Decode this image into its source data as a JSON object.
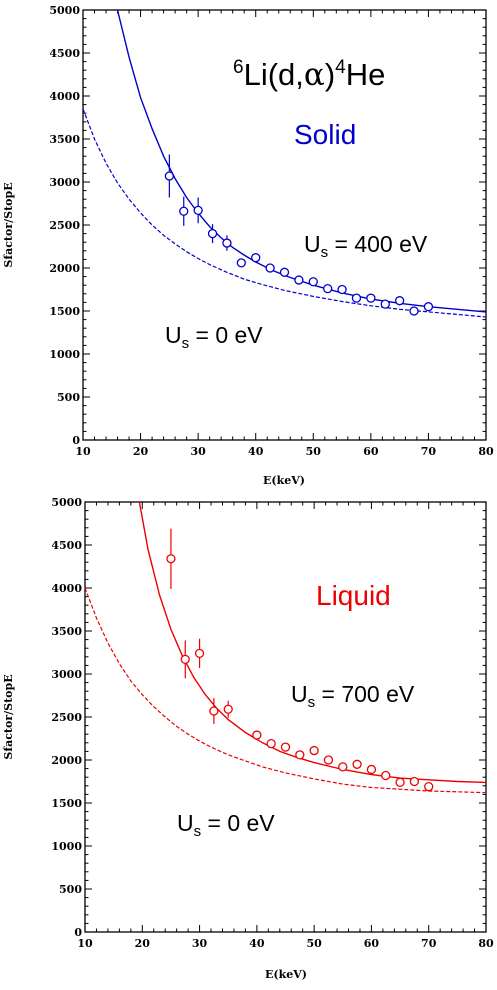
{
  "chart_data": [
    {
      "type": "scatter",
      "panel": "top",
      "xlabel": "E(keV)",
      "ylabel": "Sfactor/StopE",
      "xlim": [
        10,
        80
      ],
      "ylim": [
        0,
        5000
      ],
      "xticks": [
        10,
        20,
        30,
        40,
        50,
        60,
        70,
        80
      ],
      "yticks": [
        0,
        500,
        1000,
        1500,
        2000,
        2500,
        3000,
        3500,
        4000,
        4500,
        5000
      ],
      "color": "#0000cc",
      "title": "6Li(d,α)4He",
      "title_parts": {
        "pre": "6",
        "a": "Li(d,",
        "alpha": "α",
        "b": ")",
        "sup": "4",
        "c": "He"
      },
      "medium": "Solid",
      "fit": {
        "label": "Us = 400 eV",
        "U": "U",
        "sub": "s",
        "rest": " = 400 eV"
      },
      "bare": {
        "label": "Us = 0 eV",
        "U": "U",
        "sub": "s",
        "rest": " = 0 eV"
      },
      "points": [
        {
          "x": 25,
          "y": 3070,
          "err": 250
        },
        {
          "x": 27.5,
          "y": 2660,
          "err": 170
        },
        {
          "x": 30,
          "y": 2670,
          "err": 150
        },
        {
          "x": 32.5,
          "y": 2400,
          "err": 110
        },
        {
          "x": 35,
          "y": 2290,
          "err": 90
        },
        {
          "x": 37.5,
          "y": 2060,
          "err": 0
        },
        {
          "x": 40,
          "y": 2120,
          "err": 0
        },
        {
          "x": 42.5,
          "y": 2000,
          "err": 0
        },
        {
          "x": 45,
          "y": 1950,
          "err": 0
        },
        {
          "x": 47.5,
          "y": 1860,
          "err": 0
        },
        {
          "x": 50,
          "y": 1840,
          "err": 0
        },
        {
          "x": 52.5,
          "y": 1760,
          "err": 0
        },
        {
          "x": 55,
          "y": 1750,
          "err": 0
        },
        {
          "x": 57.5,
          "y": 1650,
          "err": 0
        },
        {
          "x": 60,
          "y": 1650,
          "err": 0
        },
        {
          "x": 62.5,
          "y": 1580,
          "err": 0
        },
        {
          "x": 65,
          "y": 1620,
          "err": 0
        },
        {
          "x": 67.5,
          "y": 1500,
          "err": 0
        },
        {
          "x": 70,
          "y": 1550,
          "err": 0
        }
      ],
      "fit_curve": {
        "x": [
          16,
          18,
          20,
          22,
          24,
          26,
          28,
          30,
          32,
          34,
          36,
          38,
          40,
          43,
          46,
          50,
          55,
          60,
          65,
          70,
          75,
          80
        ],
        "y": [
          5000,
          4450,
          3980,
          3620,
          3300,
          3040,
          2820,
          2640,
          2480,
          2350,
          2240,
          2150,
          2070,
          1970,
          1890,
          1800,
          1710,
          1640,
          1590,
          1550,
          1520,
          1490
        ]
      },
      "bare_curve": {
        "x": [
          10,
          12,
          14,
          16,
          18,
          20,
          22,
          24,
          26,
          28,
          30,
          32,
          35,
          38,
          41,
          45,
          50,
          55,
          60,
          65,
          70,
          75,
          80
        ],
        "y": [
          3850,
          3500,
          3220,
          2990,
          2800,
          2640,
          2500,
          2380,
          2280,
          2190,
          2110,
          2040,
          1950,
          1870,
          1810,
          1740,
          1670,
          1610,
          1560,
          1520,
          1490,
          1460,
          1430
        ]
      }
    },
    {
      "type": "scatter",
      "panel": "bottom",
      "xlabel": "E(keV)",
      "ylabel": "Sfactor/StopE",
      "xlim": [
        10,
        80
      ],
      "ylim": [
        0,
        5000
      ],
      "xticks": [
        10,
        20,
        30,
        40,
        50,
        60,
        70,
        80
      ],
      "yticks": [
        0,
        500,
        1000,
        1500,
        2000,
        2500,
        3000,
        3500,
        4000,
        4500,
        5000
      ],
      "color": "#ee0000",
      "medium": "Liquid",
      "fit": {
        "label": "Us = 700 eV",
        "U": "U",
        "sub": "s",
        "rest": " = 700 eV"
      },
      "bare": {
        "label": "Us = 0 eV",
        "U": "U",
        "sub": "s",
        "rest": " = 0 eV"
      },
      "points": [
        {
          "x": 25,
          "y": 4340,
          "err": 350
        },
        {
          "x": 27.5,
          "y": 3170,
          "err": 220
        },
        {
          "x": 30,
          "y": 3240,
          "err": 170
        },
        {
          "x": 32.5,
          "y": 2570,
          "err": 150
        },
        {
          "x": 35,
          "y": 2590,
          "err": 100
        },
        {
          "x": 40,
          "y": 2290,
          "err": 0
        },
        {
          "x": 42.5,
          "y": 2190,
          "err": 0
        },
        {
          "x": 45,
          "y": 2150,
          "err": 0
        },
        {
          "x": 47.5,
          "y": 2060,
          "err": 0
        },
        {
          "x": 50,
          "y": 2110,
          "err": 0
        },
        {
          "x": 52.5,
          "y": 2000,
          "err": 0
        },
        {
          "x": 55,
          "y": 1920,
          "err": 0
        },
        {
          "x": 57.5,
          "y": 1950,
          "err": 0
        },
        {
          "x": 60,
          "y": 1890,
          "err": 0
        },
        {
          "x": 62.5,
          "y": 1820,
          "err": 0
        },
        {
          "x": 65,
          "y": 1740,
          "err": 0
        },
        {
          "x": 67.5,
          "y": 1750,
          "err": 0
        },
        {
          "x": 70,
          "y": 1690,
          "err": 0
        }
      ],
      "fit_curve": {
        "x": [
          19.5,
          21,
          23,
          25,
          27,
          29,
          31,
          33,
          35,
          38,
          41,
          44,
          47,
          50,
          55,
          60,
          65,
          70,
          75,
          80
        ],
        "y": [
          5000,
          4450,
          3920,
          3520,
          3210,
          2960,
          2760,
          2600,
          2470,
          2320,
          2200,
          2100,
          2030,
          1970,
          1890,
          1830,
          1790,
          1770,
          1750,
          1740
        ]
      },
      "bare_curve": {
        "x": [
          10,
          12,
          14,
          16,
          18,
          20,
          22,
          24,
          26,
          28,
          30,
          32,
          35,
          38,
          41,
          45,
          50,
          55,
          60,
          65,
          70,
          75,
          80
        ],
        "y": [
          4000,
          3650,
          3360,
          3120,
          2920,
          2760,
          2620,
          2500,
          2390,
          2300,
          2220,
          2150,
          2060,
          1990,
          1920,
          1850,
          1780,
          1720,
          1680,
          1660,
          1640,
          1630,
          1620
        ]
      }
    }
  ]
}
